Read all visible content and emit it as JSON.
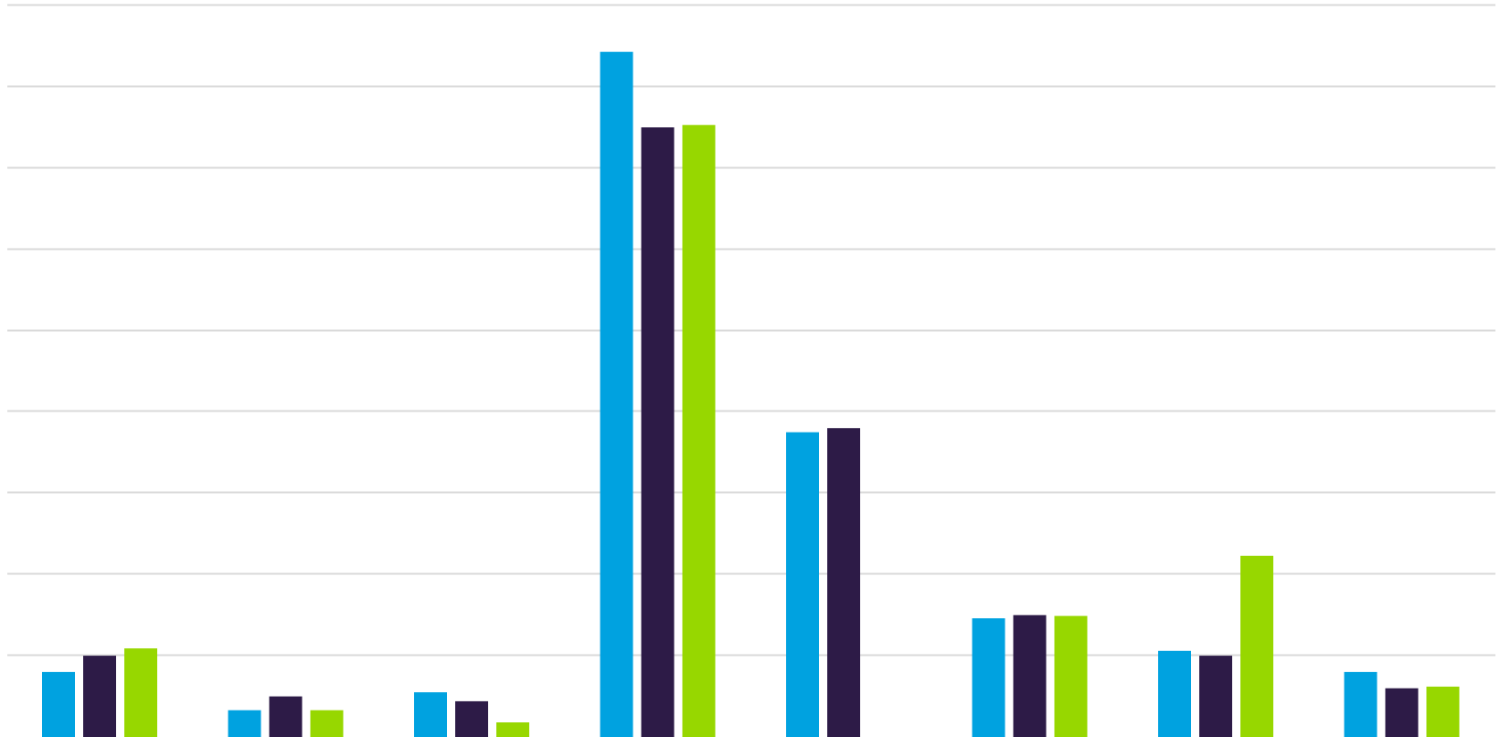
{
  "chart_data": {
    "type": "bar",
    "categories": [
      "",
      "",
      "",
      "",
      "",
      "",
      "",
      ""
    ],
    "series": [
      {
        "color": "#00a2e0",
        "values": [
          0.8,
          0.33,
          0.55,
          8.43,
          3.75,
          1.46,
          1.06,
          0.8
        ]
      },
      {
        "color": "#2d1b47",
        "values": [
          1.0,
          0.5,
          0.44,
          7.5,
          3.8,
          1.5,
          1.0,
          0.6
        ]
      },
      {
        "color": "#97d700",
        "values": [
          1.09,
          0.33,
          0.18,
          7.53,
          0,
          1.49,
          2.23,
          0.62
        ]
      }
    ],
    "ylim": [
      0,
      9
    ],
    "grid": true,
    "legend": "none",
    "title": "",
    "xlabel": "",
    "ylabel": ""
  }
}
